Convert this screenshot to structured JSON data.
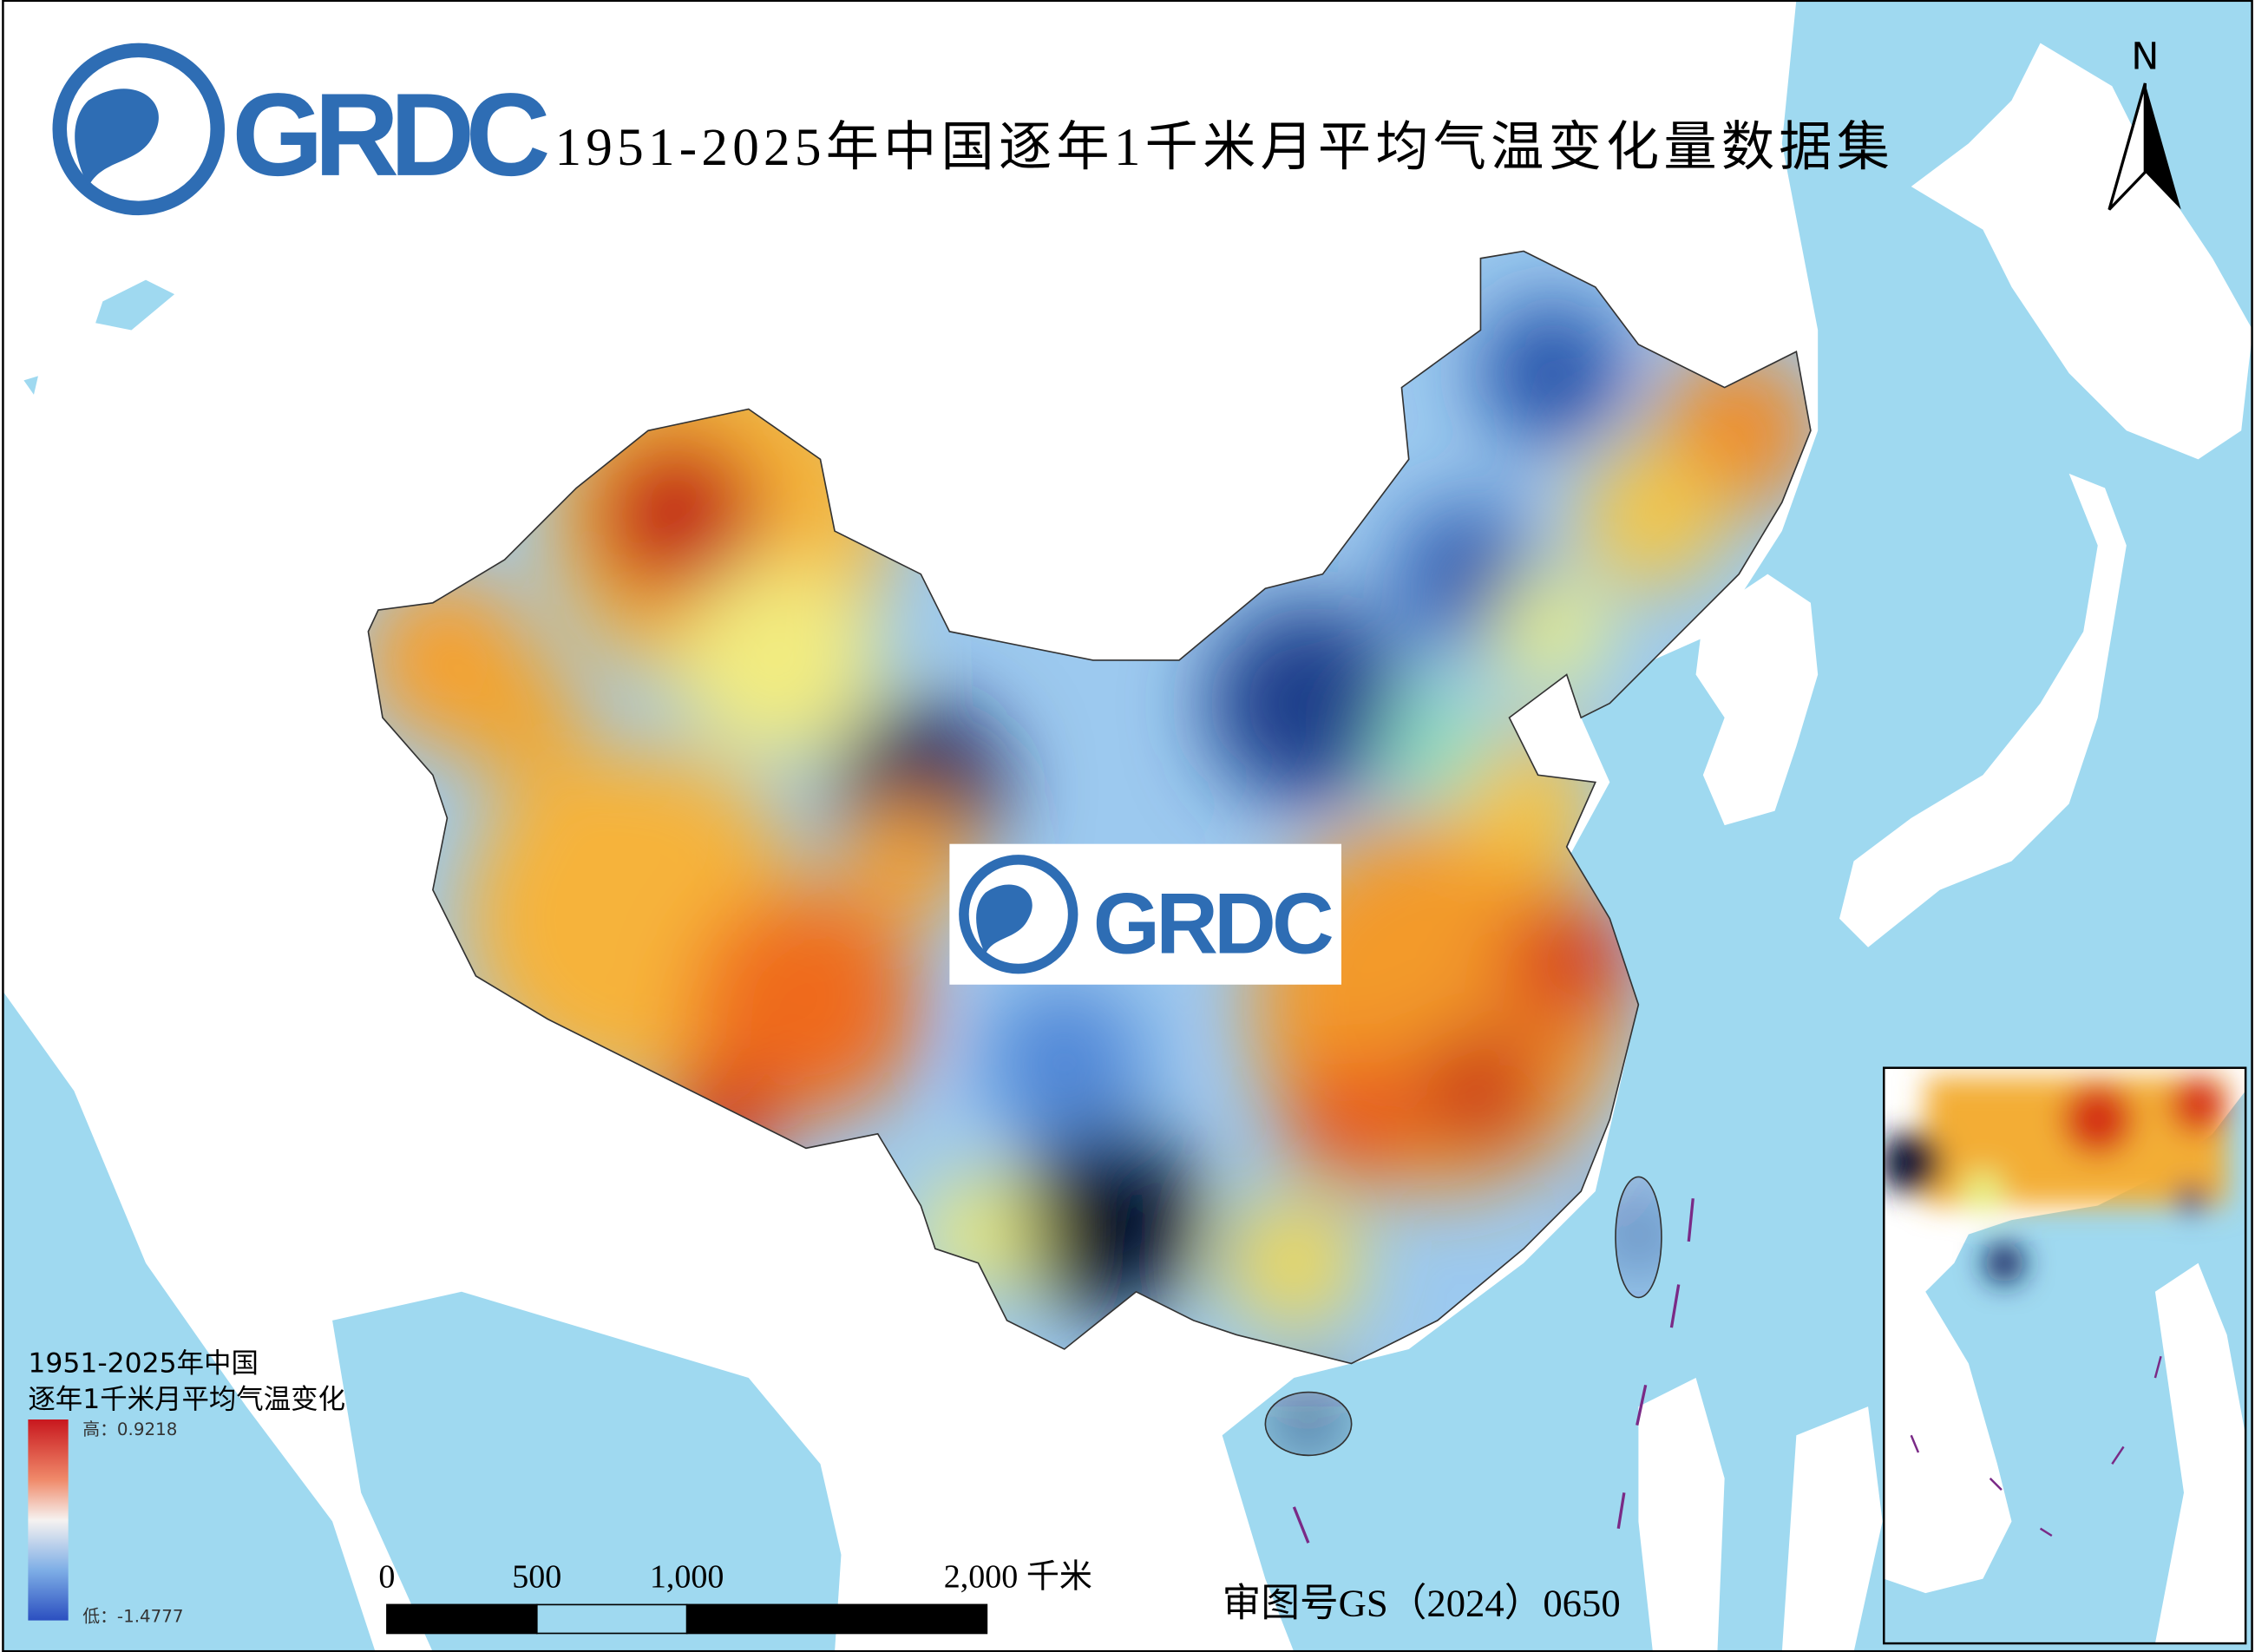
{
  "logo": {
    "text": "GRDC"
  },
  "title": "1951-2025年中国逐年1千米月平均气温变化量数据集",
  "center_logo": {
    "text": "GRDC"
  },
  "north_arrow": {
    "label": "N"
  },
  "legend": {
    "title": [
      "1951-2025年中国",
      "逐年1千米月平均气温变化"
    ],
    "high_label": "高：0.9218",
    "low_label": "低：-1.4777"
  },
  "scale_bar": {
    "ticks": [
      0,
      500,
      {
        "value": 1000,
        "label": "1,000"
      },
      {
        "value": 2000,
        "label": "2,000 千米"
      }
    ]
  },
  "review_number": "审图号GS（2024）0650"
}
